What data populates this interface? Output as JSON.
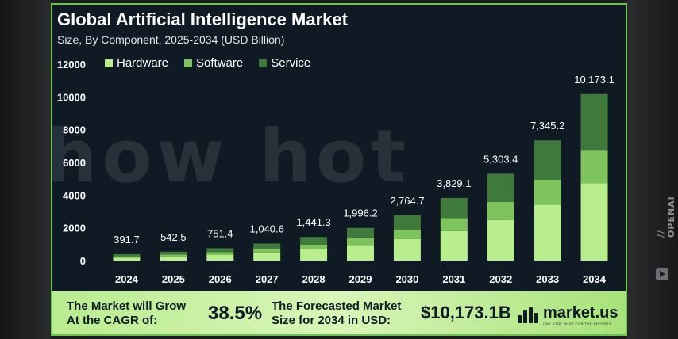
{
  "page": {
    "watermark_center": "show hot",
    "watermark_side": "// OPENAI"
  },
  "colors": {
    "background": "#0f1a24",
    "border": "#6cc24a",
    "hardware": "#b8ee8c",
    "software": "#7ec45c",
    "service": "#3f7a3c"
  },
  "chart_data": {
    "type": "bar",
    "stacked": true,
    "title": "Global Artificial Intelligence Market",
    "subtitle": "Size, By Component, 2025-2034 (USD Billion)",
    "categories": [
      "2024",
      "2025",
      "2026",
      "2027",
      "2028",
      "2029",
      "2030",
      "2031",
      "2032",
      "2033",
      "2034"
    ],
    "series": [
      {
        "name": "Hardware",
        "color": "#b8ee8c",
        "values": [
          180,
          255,
          355,
          495,
          680,
          950,
          1320,
          1800,
          2480,
          3420,
          4720
        ]
      },
      {
        "name": "Software",
        "color": "#7ec45c",
        "values": [
          80,
          115,
          160,
          220,
          300,
          420,
          580,
          800,
          1100,
          1530,
          2000
        ]
      },
      {
        "name": "Service",
        "color": "#3f7a3c",
        "values": [
          131.7,
          172.5,
          236.4,
          325.6,
          461.3,
          626.2,
          864.7,
          1229.1,
          1723.4,
          2395.2,
          3453.1
        ]
      }
    ],
    "totals": [
      391.7,
      542.5,
      751.4,
      1040.6,
      1441.3,
      1996.2,
      2764.7,
      3829.1,
      5303.4,
      7345.2,
      10173.1
    ],
    "total_labels": [
      "391.7",
      "542.5",
      "751.4",
      "1,040.6",
      "1,441.3",
      "1,996.2",
      "2,764.7",
      "3,829.1",
      "5,303.4",
      "7,345.2",
      "10,173.1"
    ],
    "y_ticks": [
      0,
      2000,
      4000,
      6000,
      8000,
      10000,
      12000
    ],
    "y_tick_labels": [
      "0",
      "2000",
      "4000",
      "6000",
      "8000",
      "10000",
      "12000"
    ],
    "ylim": [
      0,
      12000
    ],
    "grid": false,
    "legend_position": "top-left"
  },
  "footer": {
    "cagr_label_line1": "The Market will Grow",
    "cagr_label_line2": "At the CAGR of:",
    "cagr_value": "38.5%",
    "forecast_label_line1": "The Forecasted Market",
    "forecast_label_line2": "Size for 2034 in USD:",
    "forecast_value": "$10,173.1B",
    "logo_text": "market.us",
    "logo_tagline": "ONE STOP SHOP FOR THE REPORTS"
  }
}
